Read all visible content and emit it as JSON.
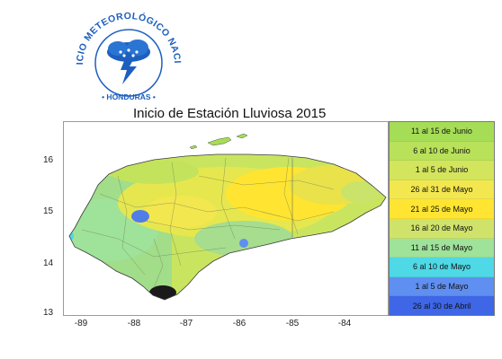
{
  "logo": {
    "arc_text": "SERVICIO METEOROLÓGICO NACIONAL",
    "bottom_text": "• HONDURAS •"
  },
  "map": {
    "title": "Inicio de Estación Lluviosa 2015",
    "lat_ticks": [
      "16",
      "15",
      "14",
      "13"
    ],
    "lon_ticks": [
      "-89",
      "-88",
      "-87",
      "-86",
      "-85",
      "-84"
    ]
  },
  "legend": {
    "items": [
      {
        "label": "11 al 15 de Junio",
        "color": "#a6dd56"
      },
      {
        "label": "6 al 10 de Junio",
        "color": "#b9e15a"
      },
      {
        "label": "1 al 5 de Junio",
        "color": "#d3e55c"
      },
      {
        "label": "26 al 31 de Mayo",
        "color": "#f2e74f"
      },
      {
        "label": "21 al 25 de Mayo",
        "color": "#ffe531"
      },
      {
        "label": "16 al 20 de Mayo",
        "color": "#cfe36b"
      },
      {
        "label": "11 al 15 de Mayo",
        "color": "#9fe29a"
      },
      {
        "label": "6 al 10 de Mayo",
        "color": "#4fd8e6"
      },
      {
        "label": "1 al 5 de Mayo",
        "color": "#5f8ff0"
      },
      {
        "label": "26 al 30 de Abril",
        "color": "#3e66e6"
      }
    ]
  }
}
